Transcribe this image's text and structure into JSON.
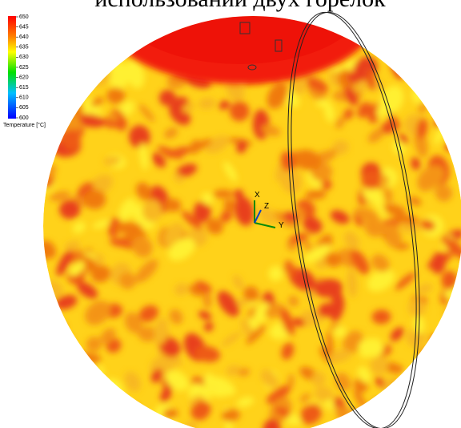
{
  "title": "использовании двух горелок",
  "colorbar": {
    "label": "Temperature [°C]",
    "ticks": [
      650,
      645,
      640,
      635,
      630,
      625,
      620,
      615,
      610,
      605,
      600
    ]
  },
  "axes": {
    "x": "X",
    "y": "Y",
    "z": "Z"
  }
}
